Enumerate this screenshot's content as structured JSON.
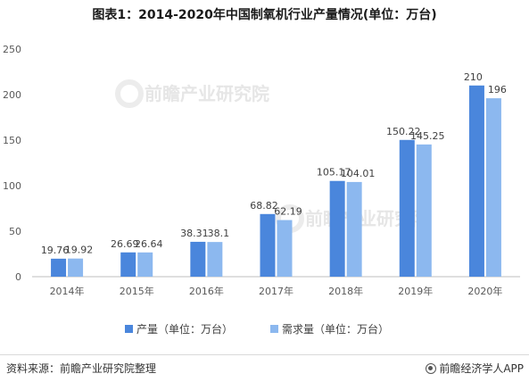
{
  "title": "图表1：2014-2020年中国制氧机行业产量情况(单位：万台)",
  "watermark": "前瞻产业研究院",
  "colors": {
    "series_0": "#4a86dc",
    "series_1": "#8cb8ef",
    "axis": "#bfbfbf",
    "grid": "#e9e9e9"
  },
  "chart_data": {
    "type": "bar",
    "title": "图表1：2014-2020年中国制氧机行业产量情况(单位：万台)",
    "categories": [
      "2014年",
      "2015年",
      "2016年",
      "2017年",
      "2018年",
      "2019年",
      "2020年"
    ],
    "series": [
      {
        "name": "产量（单位：万台）",
        "values": [
          19.76,
          26.69,
          38.31,
          68.82,
          105.17,
          150.22,
          210
        ]
      },
      {
        "name": "需求量（单位：万台）",
        "values": [
          19.92,
          26.64,
          38.1,
          62.19,
          104.01,
          145.25,
          196
        ]
      }
    ],
    "value_labels": [
      [
        "19.76",
        "26.69",
        "38.31",
        "68.82",
        "105.17",
        "150.22",
        "210"
      ],
      [
        "19.92",
        "26.64",
        "38.1",
        "62.19",
        "104.01",
        "145.25",
        "196"
      ]
    ],
    "ylim": [
      0,
      250
    ],
    "yticks": [
      0,
      50,
      100,
      150,
      200,
      250
    ],
    "grid": false,
    "legend_position": "bottom-center"
  },
  "footer": {
    "source": "资料来源：前瞻产业研究院整理",
    "brand": "前瞻经济学人APP"
  }
}
